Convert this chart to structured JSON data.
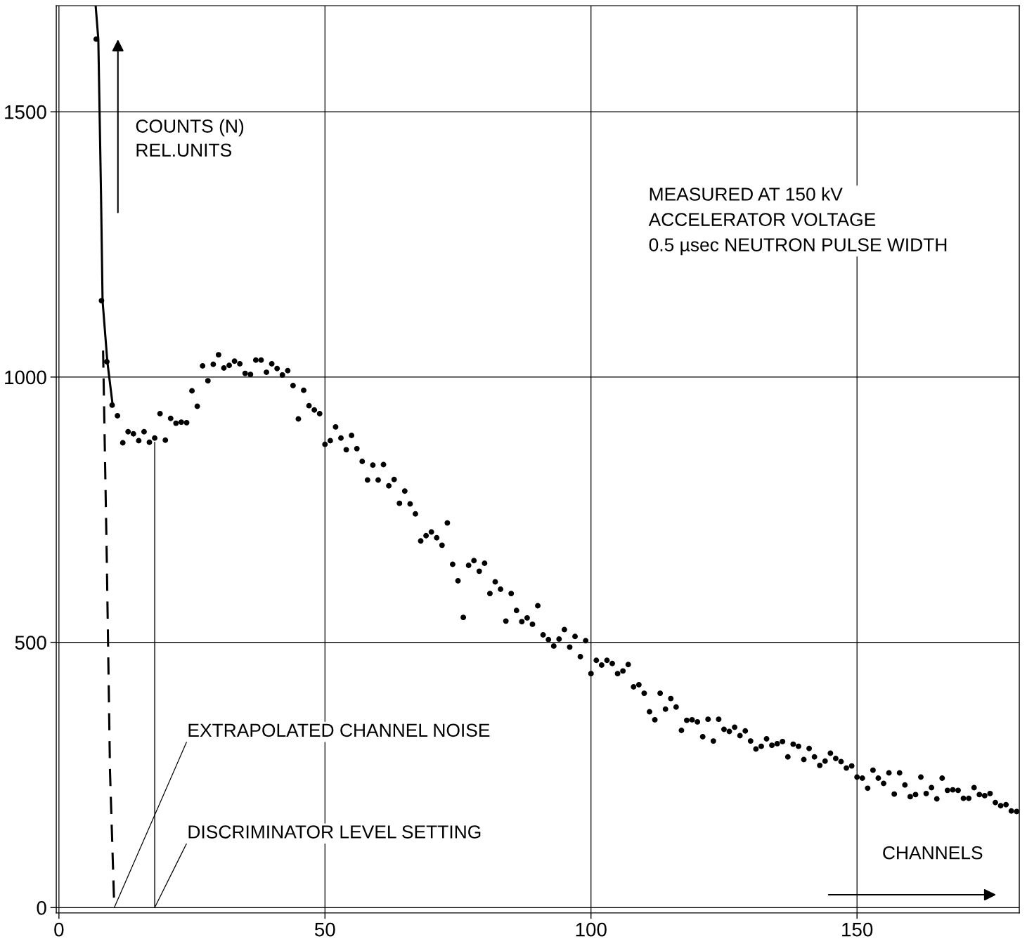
{
  "chart_data": {
    "type": "scatter",
    "xlabel": "CHANNELS",
    "ylabel": "COUNTS (N)\nREL.UNITS",
    "xlim": [
      -0.5,
      180.5
    ],
    "ylim": [
      -10,
      1700
    ],
    "xticks": [
      0,
      50,
      100,
      150
    ],
    "yticks": [
      0,
      500,
      1000,
      1500
    ],
    "grid": true,
    "series": [
      {
        "marker": "circle",
        "color": "#000000",
        "x": [
          7,
          8,
          9,
          10,
          11,
          12,
          13,
          14,
          15,
          16,
          17,
          18,
          19,
          20,
          21,
          22,
          23,
          24,
          25,
          26,
          27,
          28,
          29,
          30,
          31,
          32,
          33,
          34,
          35,
          36,
          37,
          38,
          39,
          40,
          41,
          42,
          43,
          44,
          45,
          46,
          47,
          48,
          49,
          50,
          51,
          52,
          53,
          54,
          55,
          56,
          57,
          58,
          59,
          60,
          61,
          62,
          63,
          64,
          65,
          66,
          67,
          68,
          69,
          70,
          71,
          72,
          73,
          74,
          75,
          76,
          77,
          78,
          79,
          80,
          81,
          82,
          83,
          84,
          85,
          86,
          87,
          88,
          89,
          90,
          91,
          92,
          93,
          94,
          95,
          96,
          97,
          98,
          99,
          100,
          101,
          102,
          103,
          104,
          105,
          106,
          107,
          108,
          109,
          110,
          111,
          112,
          113,
          114,
          115,
          116,
          117,
          118,
          119,
          120,
          121,
          122,
          123,
          124,
          125,
          126,
          127,
          128,
          129,
          130,
          131,
          132,
          133,
          134,
          135,
          136,
          137,
          138,
          139,
          140,
          141,
          142,
          143,
          144,
          145,
          146,
          147,
          148,
          149,
          150,
          151,
          152,
          153,
          154,
          155,
          156,
          157,
          158,
          159,
          160,
          161,
          162,
          163,
          164,
          165,
          166,
          167,
          168,
          169,
          170,
          171,
          172,
          173,
          174,
          175,
          176,
          177,
          178,
          179,
          180
        ],
        "values": [
          1637,
          1144,
          1029,
          947,
          927,
          876,
          897,
          893,
          880,
          897,
          877,
          885,
          931,
          881,
          922,
          913,
          915,
          914,
          974,
          945,
          1021,
          993,
          1024,
          1042,
          1017,
          1022,
          1030,
          1025,
          1007,
          1005,
          1032,
          1032,
          1009,
          1025,
          1016,
          1004,
          1012,
          984,
          921,
          975,
          946,
          938,
          931,
          873,
          880,
          906,
          885,
          863,
          890,
          865,
          841,
          806,
          834,
          806,
          835,
          795,
          807,
          762,
          785,
          761,
          742,
          691,
          701,
          708,
          697,
          683,
          725,
          647,
          616,
          547,
          645,
          654,
          634,
          649,
          592,
          614,
          600,
          540,
          592,
          560,
          539,
          546,
          534,
          569,
          514,
          505,
          493,
          506,
          524,
          491,
          511,
          473,
          503,
          441,
          466,
          457,
          466,
          460,
          441,
          446,
          458,
          416,
          420,
          404,
          369,
          354,
          404,
          374,
          394,
          378,
          334,
          353,
          354,
          350,
          322,
          355,
          314,
          355,
          336,
          332,
          340,
          324,
          333,
          314,
          299,
          304,
          318,
          306,
          309,
          313,
          284,
          308,
          304,
          279,
          300,
          284,
          268,
          276,
          291,
          281,
          275,
          263,
          267,
          246,
          244,
          225,
          259,
          244,
          234,
          254,
          214,
          254,
          231,
          209,
          213,
          246,
          215,
          226,
          205,
          244,
          221,
          222,
          221,
          206,
          206,
          226,
          213,
          211,
          215,
          198,
          192,
          194,
          182,
          181
        ]
      },
      {
        "type": "line",
        "line_style": "solid",
        "color": "#000000",
        "x": [
          6.9,
          7.4,
          7.9,
          8.2,
          9.1,
          10.1
        ],
        "values": [
          1700,
          1637,
          1350,
          1144,
          1029,
          947
        ]
      },
      {
        "type": "line",
        "line_style": "dashed",
        "color": "#000000",
        "x": [
          8.3,
          9.0,
          9.6,
          10.4
        ],
        "values": [
          1050,
          653,
          256,
          0
        ]
      },
      {
        "type": "line",
        "line_style": "solid",
        "color": "#000000",
        "x": [
          18,
          18
        ],
        "values": [
          0,
          877
        ]
      }
    ],
    "annotations": [
      "MEASURED AT 150 kV\nACCELERATOR VOLTAGE\n0.5 µsec NEUTRON PULSE WIDTH",
      {
        "text": "EXTRAPOLATED CHANNEL NOISE",
        "x": 10.4,
        "y": 0
      },
      {
        "text": "DISCRIMINATOR LEVEL SETTING",
        "x": 18,
        "y": 0
      }
    ]
  }
}
